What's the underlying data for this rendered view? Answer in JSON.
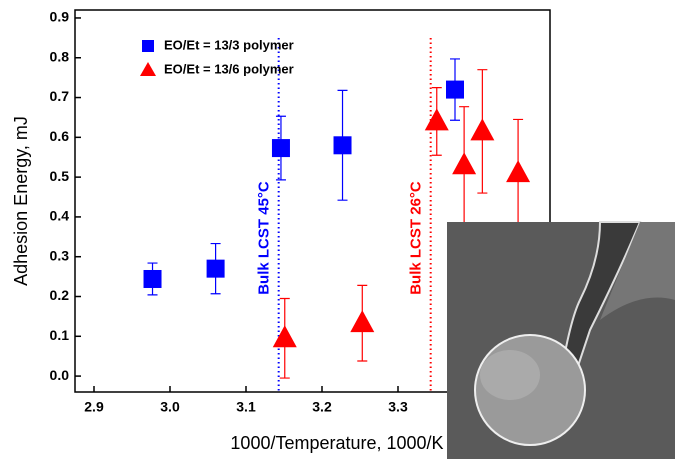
{
  "chart_data": {
    "type": "scatter",
    "x_label": "1000/Temperature, 1000/K",
    "y_label": "Adhesion Energy, mJ",
    "xlim": [
      2.875,
      3.5
    ],
    "ylim": [
      -0.04,
      0.92
    ],
    "xticks": [
      2.9,
      {
        "value": 3.0,
        "label": "3.0"
      },
      3.1,
      3.2,
      3.3
    ],
    "yticks": [
      {
        "value": 0,
        "label": "0.0"
      },
      0.1,
      0.2,
      0.3,
      0.4,
      0.5,
      0.6,
      0.7,
      0.8,
      0.9
    ],
    "legend": "upper left",
    "series": [
      {
        "name": "EO/Et = 13/3 polymer",
        "color": "#0000ff",
        "marker": "square",
        "x": [
          2.977,
          3.06,
          3.146,
          3.227,
          3.375
        ],
        "values": [
          0.244,
          0.27,
          0.573,
          0.58,
          0.72
        ],
        "errors": [
          0.04,
          0.063,
          0.08,
          0.138,
          0.077
        ]
      },
      {
        "name": "EO/Et = 13/6 polymer",
        "color": "#ff0000",
        "marker": "triangle",
        "x": [
          3.151,
          3.253,
          3.351,
          3.387,
          3.411,
          3.458
        ],
        "values": [
          0.095,
          0.133,
          0.64,
          0.53,
          0.615,
          0.51
        ],
        "errors": [
          0.1,
          0.095,
          0.085,
          0.147,
          0.155,
          0.135
        ]
      }
    ],
    "vlines": [
      {
        "x": 3.143,
        "label": "Bulk LCST 45°C",
        "color": "#0000ff"
      },
      {
        "x": 3.343,
        "label": "Bulk LCST 26°C",
        "color": "#ff0000"
      }
    ]
  }
}
